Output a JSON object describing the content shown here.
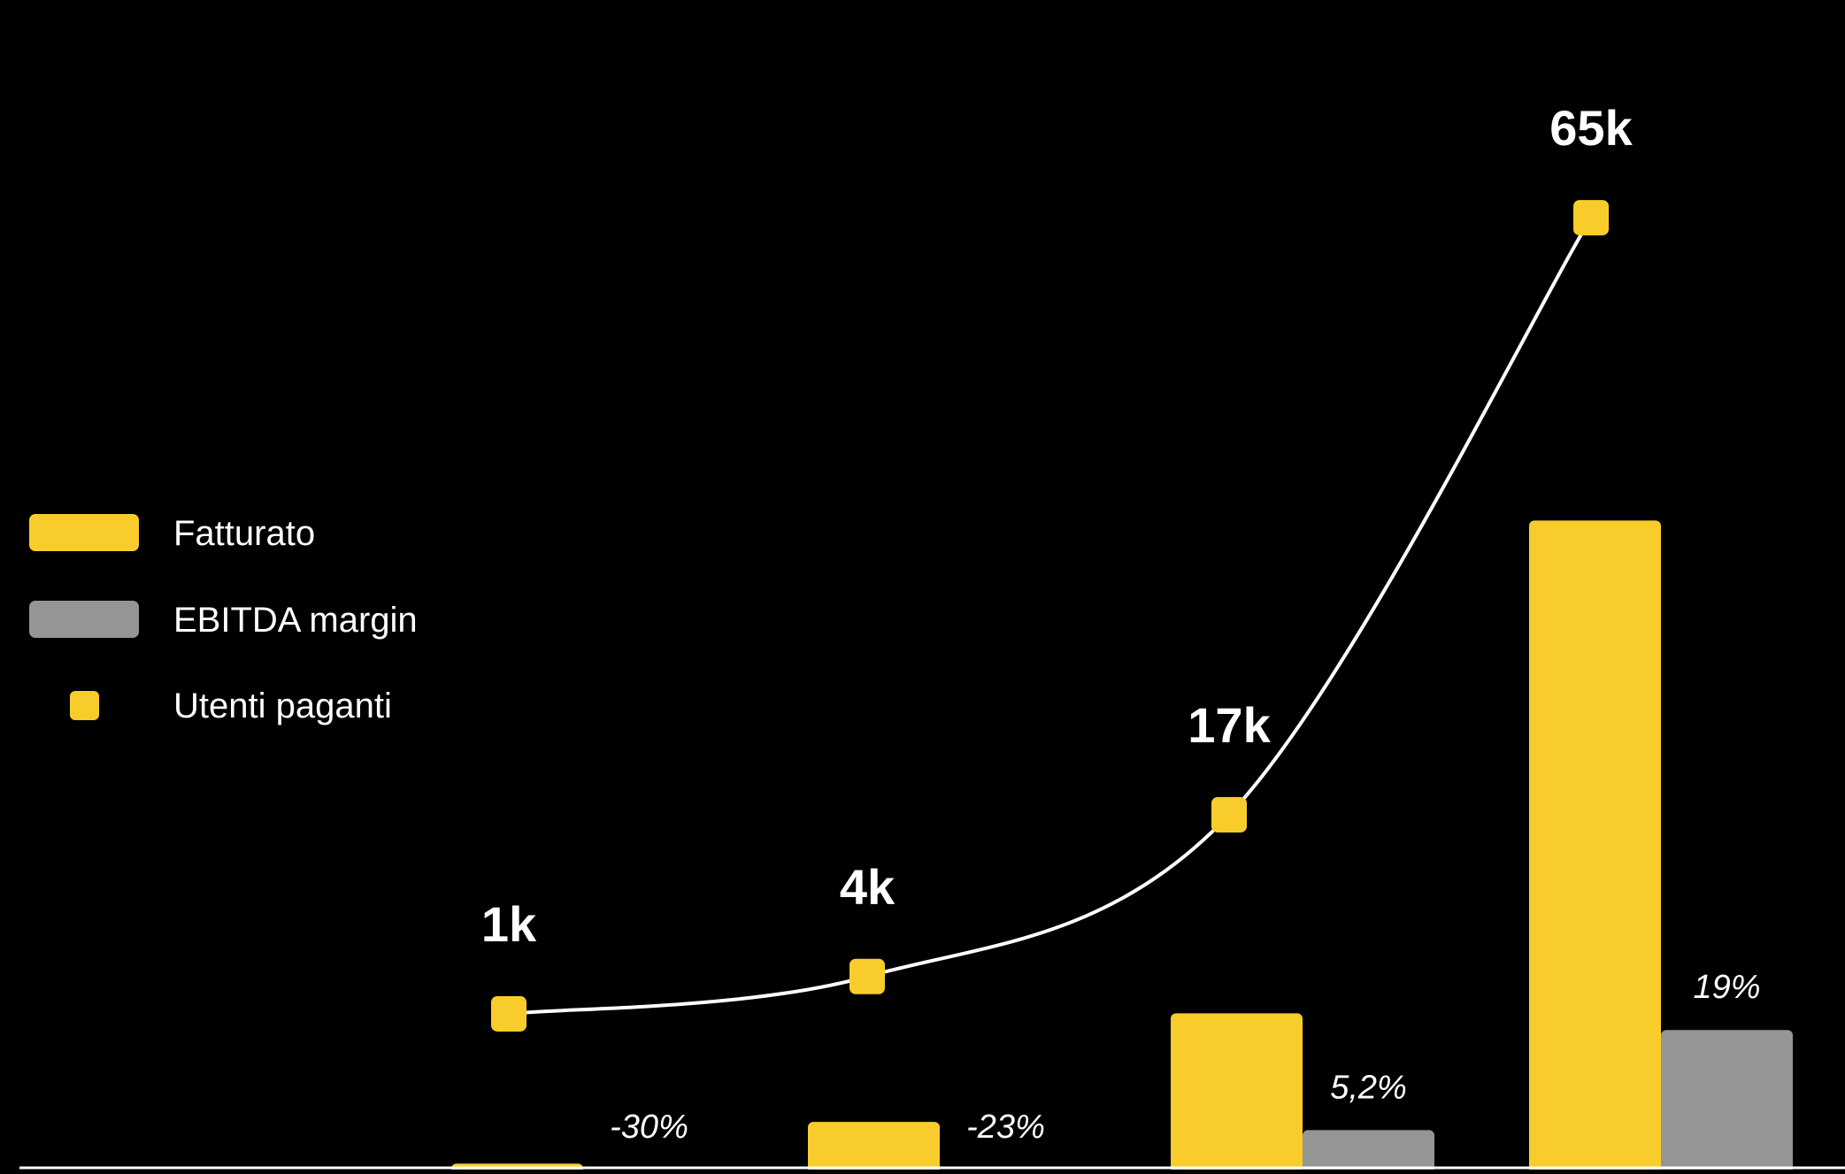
{
  "chart_data": {
    "type": "bar",
    "title": "",
    "xlabel": "",
    "ylabel": "",
    "categories": [
      "",
      "",
      "",
      ""
    ],
    "series": [
      {
        "name": "Fatturato",
        "kind": "bar",
        "color": "#F8CD2B",
        "values": [
          0.5,
          5.5,
          18.5,
          77.5
        ]
      },
      {
        "name": "EBITDA margin",
        "kind": "bar",
        "color": "#959595",
        "values": [
          -30,
          -23,
          5.2,
          19
        ],
        "labels": [
          "-30%",
          "-23%",
          "5,2%",
          "19%"
        ]
      },
      {
        "name": "Utenti paganti",
        "kind": "line",
        "color": "#F8CD2B",
        "line_color": "#FFFFFF",
        "values": [
          1,
          4,
          17,
          65
        ],
        "labels": [
          "1k",
          "4k",
          "17k",
          "65k"
        ]
      }
    ],
    "legend": {
      "position": "left",
      "items": [
        {
          "label": "Fatturato",
          "marker": "bar",
          "color": "#F8CD2B"
        },
        {
          "label": "EBITDA margin",
          "marker": "bar",
          "color": "#959595"
        },
        {
          "label": "Utenti paganti",
          "marker": "point",
          "color": "#F8CD2B"
        }
      ]
    },
    "grid": false,
    "background": "#000000"
  }
}
